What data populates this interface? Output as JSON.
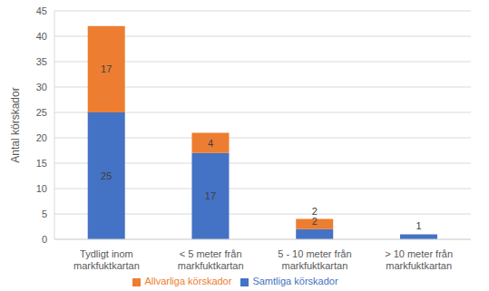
{
  "chart_data": {
    "type": "bar",
    "stacked": true,
    "data_labels": true,
    "grid": true,
    "legend": "bottom",
    "y_label": "Antal körskador",
    "categories": [
      "Tydligt inom markfuktkartan",
      "< 5 meter från markfuktkartan",
      "5 - 10 meter från markfuktkartan",
      "> 10 meter från markfuktkartan"
    ],
    "series": [
      {
        "name": "Samtliga körskador",
        "color": "#4472c4",
        "values": [
          25,
          17,
          2,
          1
        ]
      },
      {
        "name": "Allvarliga körskador",
        "color": "#ed7d31",
        "values": [
          17,
          4,
          2,
          null
        ]
      }
    ],
    "ylim": [
      0,
      45
    ],
    "yticks": [
      0,
      5,
      10,
      15,
      20,
      25,
      30,
      35,
      40,
      45
    ]
  }
}
